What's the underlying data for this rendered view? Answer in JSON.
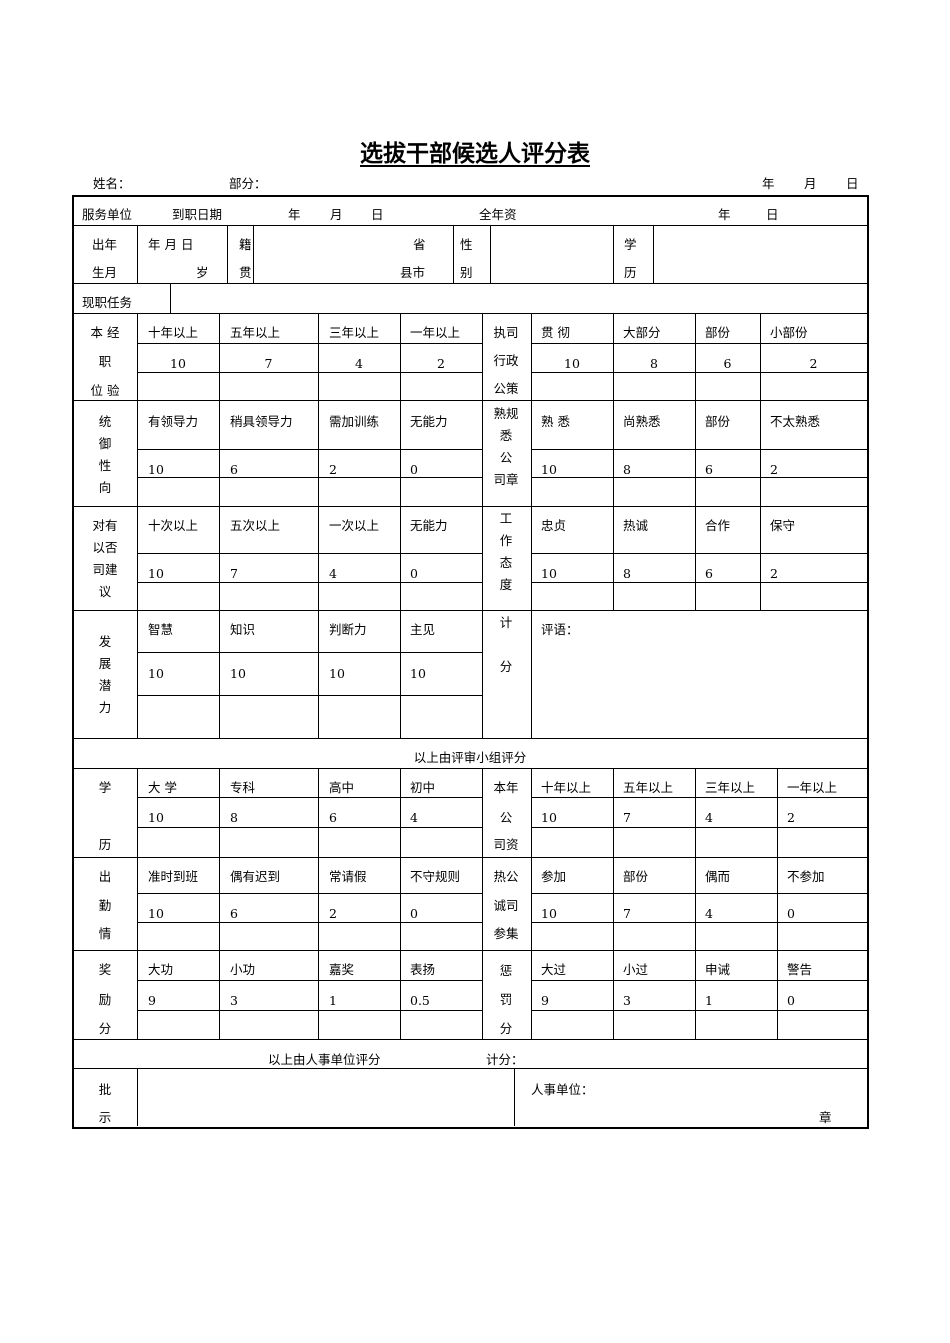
{
  "title": "选拔干部候选人评分表",
  "top_line": {
    "name_label": "姓名：",
    "dept_label": "部分：",
    "year": "年",
    "month": "月",
    "day": "日"
  },
  "service_row": {
    "service_unit": "服务单位",
    "start_date": "到职日期",
    "year": "年",
    "month": "月",
    "day": "日",
    "seniority": "全年资",
    "year2": "年",
    "day2": "日"
  },
  "info_row": {
    "birth_1": "出年",
    "birth_2": "生月",
    "ymd": "年 月 日",
    "age": "岁",
    "native_1": "籍",
    "native_2": "贯",
    "province": "省",
    "county": "县市",
    "gender_1": "性",
    "gender_2": "别",
    "edu_1": "学",
    "edu_2": "历"
  },
  "current_post": "现职任务",
  "sections": [
    {
      "left_label": [
        "本 经",
        "职",
        "位 验"
      ],
      "options": [
        "十年以上",
        "五年以上",
        "三年以上",
        "一年以上"
      ],
      "scores": [
        "10",
        "7",
        "4",
        "2"
      ],
      "mid_label": [
        "执司",
        "行政",
        "公策"
      ],
      "right_options": [
        "贯 彻",
        "大部分",
        "部份",
        "小部份"
      ],
      "right_scores": [
        "10",
        "8",
        "6",
        "2"
      ]
    },
    {
      "left_label": [
        "统",
        "御",
        "性",
        "向"
      ],
      "options": [
        "有领导力",
        "稍具领导力",
        "需加训练",
        "无能力"
      ],
      "scores": [
        "10",
        "6",
        "2",
        "0"
      ],
      "mid_label": [
        "熟规",
        "悉",
        "公",
        "司章"
      ],
      "right_options": [
        "熟 悉",
        "尚熟悉",
        "部份",
        "不太熟悉"
      ],
      "right_scores": [
        "10",
        "8",
        "6",
        "2"
      ]
    },
    {
      "left_label": [
        "对有",
        "以否",
        "司建",
        "议"
      ],
      "options": [
        "十次以上",
        "五次以上",
        "一次以上",
        "无能力"
      ],
      "scores": [
        "10",
        "7",
        "4",
        "0"
      ],
      "mid_label": [
        "工",
        "作",
        "态",
        "度"
      ],
      "right_options": [
        "忠贞",
        "热诚",
        "合作",
        "保守"
      ],
      "right_scores": [
        "10",
        "8",
        "6",
        "2"
      ]
    },
    {
      "left_label": [
        "发",
        "展",
        "潜",
        "力"
      ],
      "options": [
        "智慧",
        "知识",
        "判断力",
        "主见"
      ],
      "scores": [
        "10",
        "10",
        "10",
        "10"
      ],
      "mid_label": [
        "计",
        "分"
      ],
      "comment_label": "评语："
    },
    {
      "left_label": [
        "学",
        "历"
      ],
      "options": [
        "大 学",
        "专科",
        "高中",
        "初中"
      ],
      "scores": [
        "10",
        "8",
        "6",
        "4"
      ],
      "mid_label": [
        "本年",
        "公",
        "司资"
      ],
      "right_options": [
        "十年以上",
        "五年以上",
        "三年以上",
        "一年以上"
      ],
      "right_scores": [
        "10",
        "7",
        "4",
        "2"
      ]
    },
    {
      "left_label": [
        "出",
        "勤",
        "情"
      ],
      "options": [
        "准时到班",
        "偶有迟到",
        "常请假",
        "不守规则"
      ],
      "scores": [
        "10",
        "6",
        "2",
        "0"
      ],
      "mid_label": [
        "热公",
        "诚司",
        "参集"
      ],
      "right_options": [
        "参加",
        "部份",
        "偶而",
        "不参加"
      ],
      "right_scores": [
        "10",
        "7",
        "4",
        "0"
      ]
    },
    {
      "left_label": [
        "奖",
        "励",
        "分"
      ],
      "options": [
        "大功",
        "小功",
        "嘉奖",
        "表扬"
      ],
      "scores": [
        "9",
        "3",
        "1",
        "0.5"
      ],
      "mid_label": [
        "惩",
        "罚",
        "分"
      ],
      "right_options": [
        "大过",
        "小过",
        "申诫",
        "警告"
      ],
      "right_scores": [
        "9",
        "3",
        "1",
        "0"
      ]
    }
  ],
  "review_group_note": "以上由评审小组评分",
  "hr_note": "以上由人事单位评分",
  "hr_total": "计分：",
  "approval_label": [
    "批",
    "示"
  ],
  "hr_unit": "人事单位：",
  "seal": "章"
}
